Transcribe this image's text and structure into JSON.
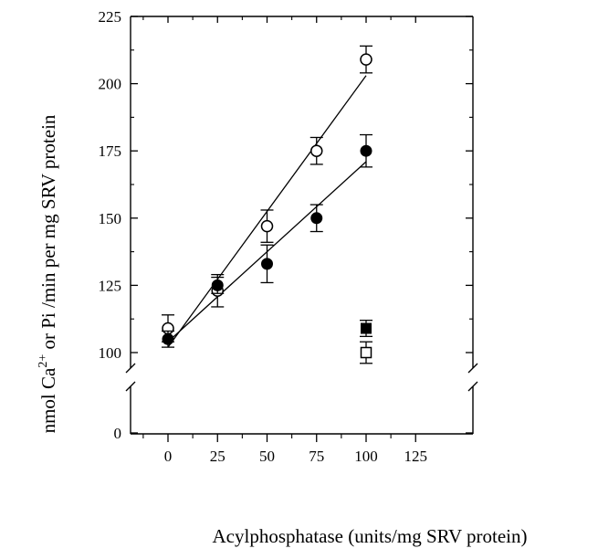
{
  "chart_data": {
    "type": "scatter",
    "xlabel": "Acylphosphatase (units/mg SRV protein)",
    "ylabel": {
      "prefix": "nmol Ca",
      "superscript": "2+",
      "suffix": " or Pi /min per mg SRV protein"
    },
    "xlim": [
      -10,
      125
    ],
    "ylim": [
      0,
      225
    ],
    "y_axis_break": [
      0,
      100
    ],
    "x_ticks": [
      0,
      25,
      50,
      75,
      100,
      125
    ],
    "x_tick_labels": [
      "0",
      "25",
      "50",
      "75",
      "100",
      "125"
    ],
    "y_ticks": [
      0,
      100,
      125,
      150,
      175,
      200,
      225
    ],
    "y_tick_labels": [
      "0",
      "100",
      "125",
      "150",
      "175",
      "200",
      "225"
    ],
    "grid": false,
    "legend": "none",
    "series": [
      {
        "marker": "open-circle",
        "x": [
          0,
          25,
          50,
          75,
          100
        ],
        "y": [
          109,
          123,
          147,
          175,
          209
        ],
        "error": [
          5,
          6,
          6,
          5,
          5
        ],
        "fit_line": {
          "x": [
            0,
            100
          ],
          "y": [
            102,
            203
          ]
        }
      },
      {
        "marker": "filled-circle",
        "x": [
          0,
          25,
          50,
          75,
          100
        ],
        "y": [
          105,
          125,
          133,
          150,
          175
        ],
        "error": [
          3,
          3,
          7,
          5,
          6
        ],
        "fit_line": {
          "x": [
            0,
            100
          ],
          "y": [
            104,
            171
          ]
        }
      },
      {
        "marker": "filled-square",
        "x": [
          100
        ],
        "y": [
          109
        ],
        "error": [
          3
        ]
      },
      {
        "marker": "open-square",
        "x": [
          100
        ],
        "y": [
          100
        ],
        "error": [
          4
        ]
      }
    ]
  }
}
